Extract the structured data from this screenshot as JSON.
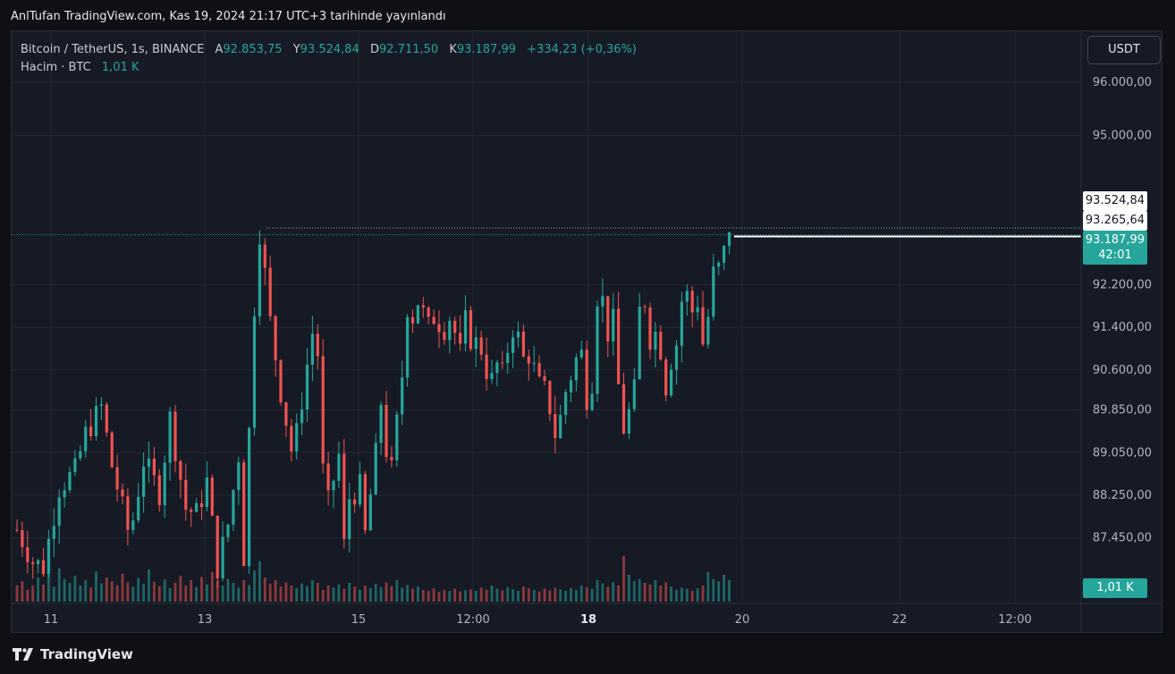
{
  "caption": "AnlTufan TradingView.com, Kas 19, 2024 21:17 UTC+3 tarihinde yayınlandı",
  "legend": {
    "symbol": "Bitcoin / TetherUS, 1s, BINANCE",
    "open_label": "A",
    "open": "92.853,75",
    "high_label": "Y",
    "high": "93.524,84",
    "low_label": "D",
    "low": "92.711,50",
    "close_label": "K",
    "close": "93.187,99",
    "change": "+334,23 (+0,36%)",
    "volume_label": "Hacim · BTC",
    "volume": "1,01 K"
  },
  "currency": "USDT",
  "footer_brand": "TradingView",
  "colors": {
    "up": "#26a69a",
    "down": "#ef5350",
    "background": "#161a25",
    "grid": "#232834"
  },
  "chart_data": {
    "type": "candlestick",
    "y_axis_ticks": [
      {
        "value": 96000,
        "label": "96.000,00"
      },
      {
        "value": 95000,
        "label": "95.000,00"
      },
      {
        "value": 92200,
        "label": "92.200,00"
      },
      {
        "value": 91400,
        "label": "91.400,00"
      },
      {
        "value": 90600,
        "label": "90.600,00"
      },
      {
        "value": 89850,
        "label": "89.850,00"
      },
      {
        "value": 89050,
        "label": "89.050,00"
      },
      {
        "value": 88250,
        "label": "88.250,00"
      },
      {
        "value": 87450,
        "label": "87.450,00"
      }
    ],
    "x_axis_ticks": [
      {
        "label": "11",
        "bold": false
      },
      {
        "label": "13",
        "bold": false
      },
      {
        "label": "15",
        "bold": false
      },
      {
        "label": "12:00",
        "bold": false
      },
      {
        "label": "18",
        "bold": true
      },
      {
        "label": "20",
        "bold": false
      },
      {
        "label": "22",
        "bold": false
      },
      {
        "label": "12:00",
        "bold": false
      }
    ],
    "price_markers": [
      {
        "value": 93524.84,
        "label": "93.524,84",
        "style": "high"
      },
      {
        "value": 93265.64,
        "label": "93.265,64",
        "style": "level"
      },
      {
        "value": 93187.99,
        "label": "93.187,99",
        "countdown": "42:01",
        "style": "last"
      }
    ],
    "volume_marker": "1,01 K",
    "series_path": [
      [
        0,
        87600
      ],
      [
        3,
        87000
      ],
      [
        5,
        86900
      ],
      [
        8,
        88400
      ],
      [
        11,
        88700
      ],
      [
        13,
        89400
      ],
      [
        16,
        89900
      ],
      [
        18,
        88800
      ],
      [
        21,
        87600
      ],
      [
        22,
        87800
      ],
      [
        24,
        88900
      ],
      [
        27,
        88300
      ],
      [
        29,
        89700
      ],
      [
        32,
        88000
      ],
      [
        34,
        87900
      ],
      [
        36,
        88500
      ],
      [
        38,
        86900
      ],
      [
        40,
        87700
      ],
      [
        42,
        89000
      ],
      [
        43,
        87100
      ],
      [
        45,
        91800
      ],
      [
        46,
        93200
      ],
      [
        47,
        92400
      ],
      [
        48,
        91500
      ],
      [
        50,
        90200
      ],
      [
        52,
        89100
      ],
      [
        53,
        89400
      ],
      [
        55,
        90700
      ],
      [
        56,
        91300
      ],
      [
        57,
        90900
      ],
      [
        58,
        88700
      ],
      [
        59,
        88100
      ],
      [
        61,
        89000
      ],
      [
        62,
        87300
      ],
      [
        63,
        88200
      ],
      [
        65,
        88400
      ],
      [
        66,
        87500
      ],
      [
        68,
        89000
      ],
      [
        69,
        90000
      ],
      [
        70,
        89100
      ],
      [
        71,
        88700
      ],
      [
        73,
        90500
      ],
      [
        74,
        91800
      ],
      [
        75,
        91600
      ],
      [
        76,
        91900
      ],
      [
        78,
        91400
      ],
      [
        79,
        91600
      ],
      [
        81,
        91400
      ],
      [
        82,
        91600
      ],
      [
        83,
        91300
      ],
      [
        84,
        90900
      ],
      [
        85,
        91500
      ],
      [
        86,
        91200
      ],
      [
        87,
        91100
      ],
      [
        88,
        91000
      ],
      [
        89,
        90600
      ],
      [
        90,
        90400
      ],
      [
        91,
        90700
      ],
      [
        92,
        90500
      ],
      [
        93,
        91000
      ],
      [
        94,
        91400
      ],
      [
        95,
        91200
      ],
      [
        96,
        90800
      ],
      [
        97,
        90900
      ],
      [
        98,
        90600
      ],
      [
        99,
        90300
      ],
      [
        100,
        90200
      ],
      [
        101,
        89900
      ],
      [
        102,
        89400
      ],
      [
        103,
        89700
      ],
      [
        104,
        90200
      ],
      [
        105,
        90500
      ],
      [
        106,
        90800
      ],
      [
        107,
        90900
      ],
      [
        108,
        90100
      ],
      [
        109,
        90400
      ],
      [
        110,
        92000
      ],
      [
        111,
        91900
      ],
      [
        112,
        91300
      ],
      [
        113,
        91500
      ],
      [
        114,
        90300
      ],
      [
        115,
        89500
      ],
      [
        116,
        89800
      ],
      [
        117,
        90200
      ],
      [
        118,
        91700
      ],
      [
        119,
        91900
      ],
      [
        120,
        91200
      ],
      [
        121,
        91300
      ],
      [
        122,
        91000
      ],
      [
        123,
        90300
      ],
      [
        124,
        90800
      ],
      [
        125,
        91100
      ],
      [
        126,
        91900
      ],
      [
        127,
        92000
      ],
      [
        128,
        91700
      ],
      [
        129,
        91900
      ],
      [
        130,
        91100
      ],
      [
        131,
        91600
      ],
      [
        132,
        92400
      ],
      [
        133,
        92500
      ],
      [
        134,
        92800
      ],
      [
        135,
        93187.99
      ]
    ],
    "volume_levels": [
      0.3,
      0.38,
      0.22,
      0.3,
      0.45,
      0.32,
      0.5,
      0.28,
      0.62,
      0.42,
      0.35,
      0.48,
      0.3,
      0.4,
      0.26,
      0.56,
      0.34,
      0.45,
      0.38,
      0.3,
      0.52,
      0.36,
      0.28,
      0.44,
      0.33,
      0.6,
      0.37,
      0.29,
      0.41,
      0.25,
      0.35,
      0.48,
      0.3,
      0.4,
      0.27,
      0.46,
      0.32,
      0.55,
      0.38,
      0.3,
      0.42,
      0.35,
      0.26,
      0.4,
      0.31,
      0.58,
      0.75,
      0.45,
      0.33,
      0.4,
      0.28,
      0.36,
      0.3,
      0.25,
      0.34,
      0.29,
      0.4,
      0.35,
      0.22,
      0.3,
      0.26,
      0.32,
      0.24,
      0.35,
      0.28,
      0.22,
      0.3,
      0.25,
      0.33,
      0.27,
      0.36,
      0.29,
      0.4,
      0.26,
      0.31,
      0.24,
      0.28,
      0.22,
      0.2,
      0.25,
      0.18,
      0.22,
      0.2,
      0.24,
      0.19,
      0.21,
      0.23,
      0.2,
      0.26,
      0.22,
      0.3,
      0.24,
      0.21,
      0.27,
      0.23,
      0.2,
      0.28,
      0.25,
      0.22,
      0.19,
      0.24,
      0.21,
      0.26,
      0.23,
      0.2,
      0.25,
      0.22,
      0.3,
      0.27,
      0.24,
      0.4,
      0.34,
      0.28,
      0.36,
      0.3,
      0.85,
      0.5,
      0.38,
      0.42,
      0.35,
      0.32,
      0.4,
      0.3,
      0.36,
      0.28,
      0.22,
      0.26,
      0.24,
      0.2,
      0.25,
      0.3,
      0.55,
      0.42,
      0.38,
      0.5,
      0.4
    ]
  }
}
